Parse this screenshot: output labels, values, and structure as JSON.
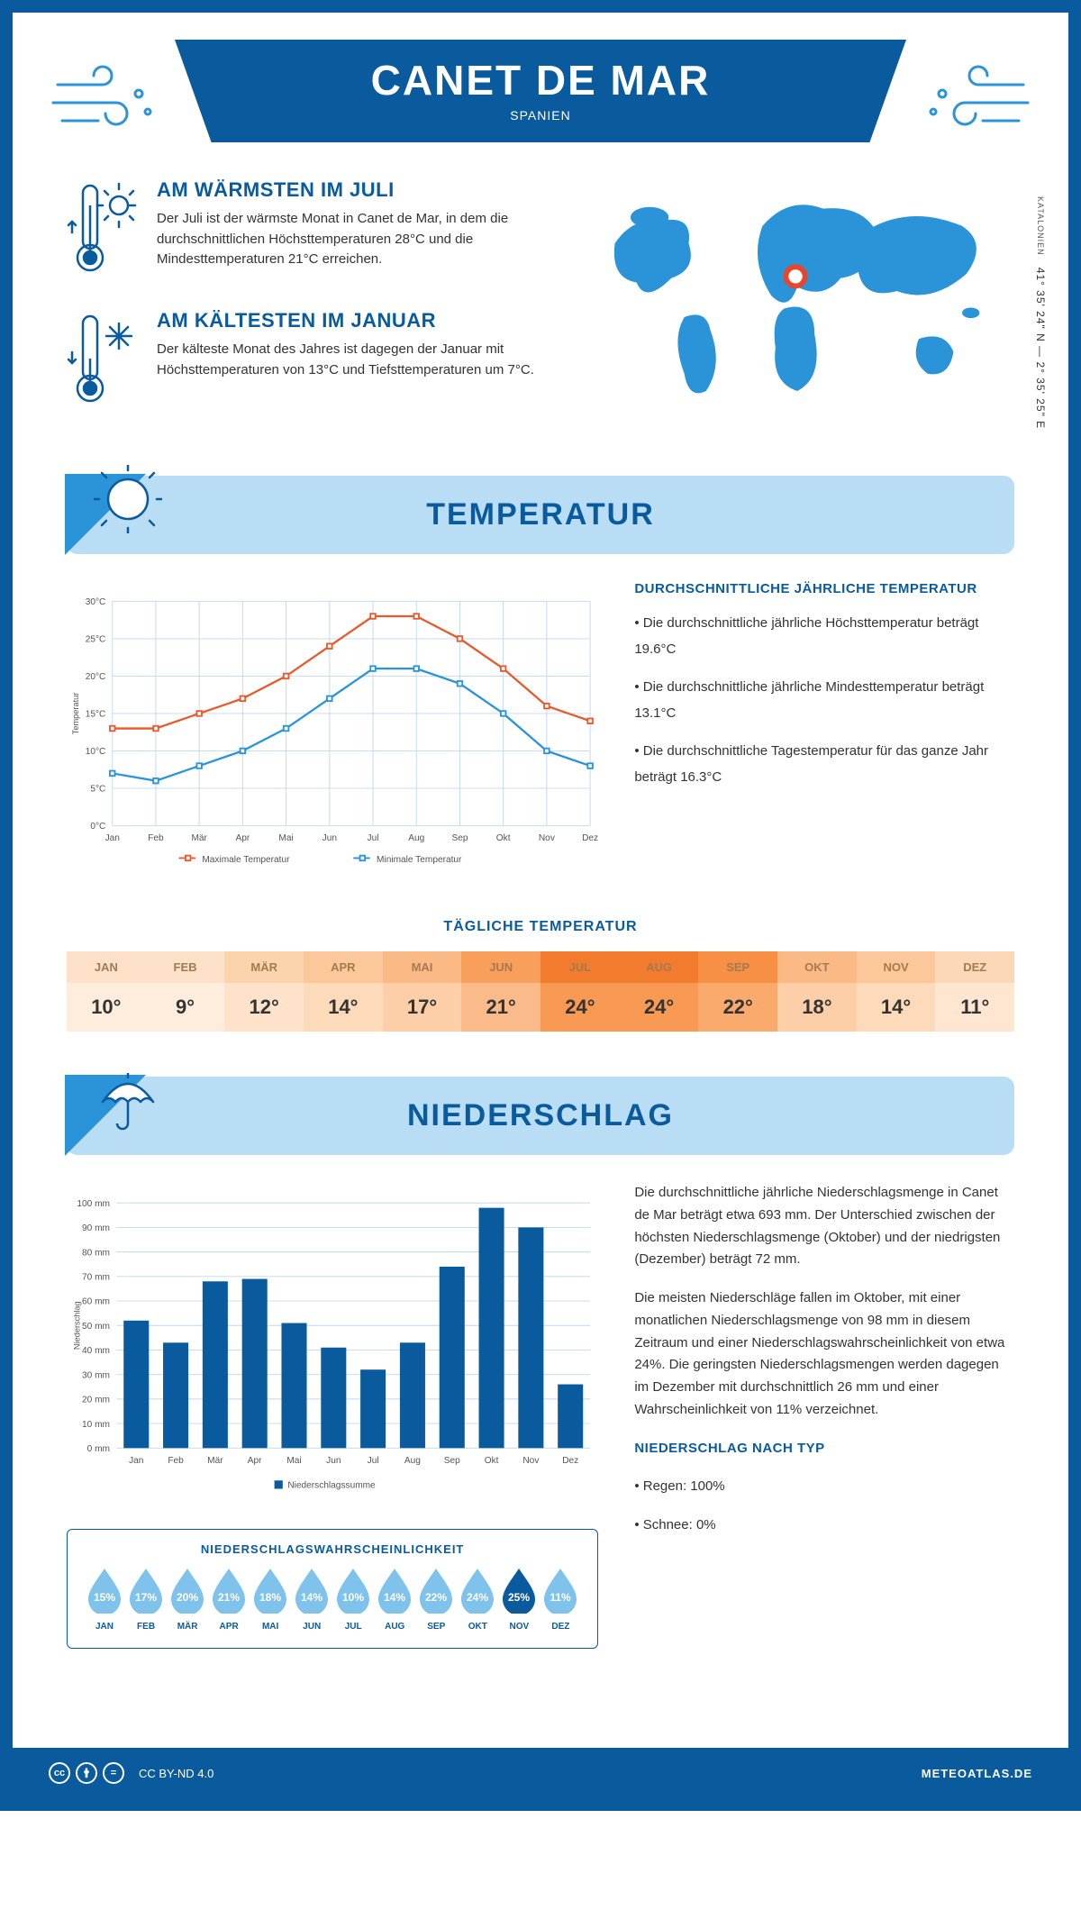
{
  "header": {
    "title": "CANET DE MAR",
    "country": "SPANIEN"
  },
  "coords": {
    "lat": "41° 35' 24\" N",
    "lon": "2° 35' 25\" E",
    "region": "KATALONIEN"
  },
  "warm": {
    "title": "AM WÄRMSTEN IM JULI",
    "text": "Der Juli ist der wärmste Monat in Canet de Mar, in dem die durchschnittlichen Höchsttemperaturen 28°C und die Mindesttemperaturen 21°C erreichen."
  },
  "cold": {
    "title": "AM KÄLTESTEN IM JANUAR",
    "text": "Der kälteste Monat des Jahres ist dagegen der Januar mit Höchsttemperaturen von 13°C und Tiefsttemperaturen um 7°C."
  },
  "temp_section": {
    "title": "TEMPERATUR"
  },
  "temp_chart": {
    "months": [
      "Jan",
      "Feb",
      "Mär",
      "Apr",
      "Mai",
      "Jun",
      "Jul",
      "Aug",
      "Sep",
      "Okt",
      "Nov",
      "Dez"
    ],
    "max": [
      13,
      13,
      15,
      17,
      20,
      24,
      28,
      28,
      25,
      21,
      16,
      14
    ],
    "min": [
      7,
      6,
      8,
      10,
      13,
      17,
      21,
      21,
      19,
      15,
      10,
      8
    ],
    "ymin": 0,
    "ymax": 30,
    "ystep": 5,
    "max_color": "#e85a2c",
    "min_color": "#2b94d9",
    "grid_color": "#c0d8ec",
    "axis_label": "Temperatur",
    "legend_max": "Maximale Temperatur",
    "legend_min": "Minimale Temperatur"
  },
  "temp_facts": {
    "title": "DURCHSCHNITTLICHE JÄHRLICHE TEMPERATUR",
    "items": [
      "• Die durchschnittliche jährliche Höchsttemperatur beträgt 19.6°C",
      "• Die durchschnittliche jährliche Mindesttemperatur beträgt 13.1°C",
      "• Die durchschnittliche Tagestemperatur für das ganze Jahr beträgt 16.3°C"
    ]
  },
  "daily_temp": {
    "title": "TÄGLICHE TEMPERATUR",
    "months": [
      "JAN",
      "FEB",
      "MÄR",
      "APR",
      "MAI",
      "JUN",
      "JUL",
      "AUG",
      "SEP",
      "OKT",
      "NOV",
      "DEZ"
    ],
    "values": [
      "10°",
      "9°",
      "12°",
      "14°",
      "17°",
      "21°",
      "24°",
      "24°",
      "22°",
      "18°",
      "14°",
      "11°"
    ],
    "head_colors": [
      "#fde1c8",
      "#fde1c8",
      "#fdd3ae",
      "#fcc79a",
      "#fbb986",
      "#f8a05b",
      "#f27b2e",
      "#f27b2e",
      "#f78f45",
      "#fbb986",
      "#fcc79a",
      "#fdd8b8"
    ],
    "body_colors": [
      "#feeddc",
      "#feeddc",
      "#fee2c9",
      "#fddab9",
      "#fdcfa8",
      "#fbba89",
      "#f89a54",
      "#f89a54",
      "#faaa6c",
      "#fdcfa8",
      "#fddab9",
      "#fee6d0"
    ],
    "head_text": "#a67a4f",
    "body_text": "#333"
  },
  "precip_section": {
    "title": "NIEDERSCHLAG"
  },
  "precip_chart": {
    "months": [
      "Jan",
      "Feb",
      "Mär",
      "Apr",
      "Mai",
      "Jun",
      "Jul",
      "Aug",
      "Sep",
      "Okt",
      "Nov",
      "Dez"
    ],
    "values": [
      52,
      43,
      68,
      69,
      51,
      41,
      32,
      43,
      74,
      98,
      90,
      26
    ],
    "ymin": 0,
    "ymax": 100,
    "ystep": 10,
    "bar_color": "#0a5a9e",
    "grid_color": "#c0d8ec",
    "axis_label": "Niederschlag",
    "legend": "Niederschlagssumme"
  },
  "precip_text": {
    "p1": "Die durchschnittliche jährliche Niederschlagsmenge in Canet de Mar beträgt etwa 693 mm. Der Unterschied zwischen der höchsten Niederschlagsmenge (Oktober) und der niedrigsten (Dezember) beträgt 72 mm.",
    "p2": "Die meisten Niederschläge fallen im Oktober, mit einer monatlichen Niederschlagsmenge von 98 mm in diesem Zeitraum und einer Niederschlagswahrscheinlichkeit von etwa 24%. Die geringsten Niederschlagsmengen werden dagegen im Dezember mit durchschnittlich 26 mm und einer Wahrscheinlichkeit von 11% verzeichnet.",
    "type_title": "NIEDERSCHLAG NACH TYP",
    "types": [
      "• Regen: 100%",
      "• Schnee: 0%"
    ]
  },
  "prob": {
    "title": "NIEDERSCHLAGSWAHRSCHEINLICHKEIT",
    "months": [
      "JAN",
      "FEB",
      "MÄR",
      "APR",
      "MAI",
      "JUN",
      "JUL",
      "AUG",
      "SEP",
      "OKT",
      "NOV",
      "DEZ"
    ],
    "values": [
      "15%",
      "17%",
      "20%",
      "21%",
      "18%",
      "14%",
      "10%",
      "14%",
      "22%",
      "24%",
      "25%",
      "11%"
    ],
    "light": "#7fc3ed",
    "dark": "#0a5a9e",
    "max_index": 10
  },
  "footer": {
    "license": "CC BY-ND 4.0",
    "brand": "METEOATLAS.DE"
  },
  "colors": {
    "primary": "#0a5a9e",
    "accent": "#2b94d9",
    "banner": "#b8ddf5"
  }
}
